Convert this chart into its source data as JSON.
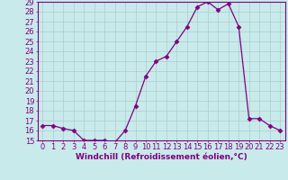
{
  "x": [
    0,
    1,
    2,
    3,
    4,
    5,
    6,
    7,
    8,
    9,
    10,
    11,
    12,
    13,
    14,
    15,
    16,
    17,
    18,
    19,
    20,
    21,
    22,
    23
  ],
  "y": [
    16.5,
    16.5,
    16.2,
    16.0,
    15.0,
    15.0,
    15.0,
    14.8,
    16.0,
    18.5,
    21.5,
    23.0,
    23.5,
    25.0,
    26.5,
    28.5,
    29.0,
    28.2,
    28.8,
    26.5,
    17.2,
    17.2,
    16.5,
    16.0
  ],
  "line_color": "#800080",
  "marker": "D",
  "markersize": 2.5,
  "background_color": "#c8eaea",
  "grid_color": "#aacccc",
  "xlabel": "Windchill (Refroidissement éolien,°C)",
  "ylabel": "",
  "ylim": [
    15,
    29
  ],
  "xlim": [
    -0.5,
    23.5
  ],
  "yticks": [
    15,
    16,
    17,
    18,
    19,
    20,
    21,
    22,
    23,
    24,
    25,
    26,
    27,
    28,
    29
  ],
  "xticks": [
    0,
    1,
    2,
    3,
    4,
    5,
    6,
    7,
    8,
    9,
    10,
    11,
    12,
    13,
    14,
    15,
    16,
    17,
    18,
    19,
    20,
    21,
    22,
    23
  ],
  "tick_color": "#800080",
  "label_color": "#800080",
  "font_size": 6,
  "xlabel_fontsize": 6.5
}
